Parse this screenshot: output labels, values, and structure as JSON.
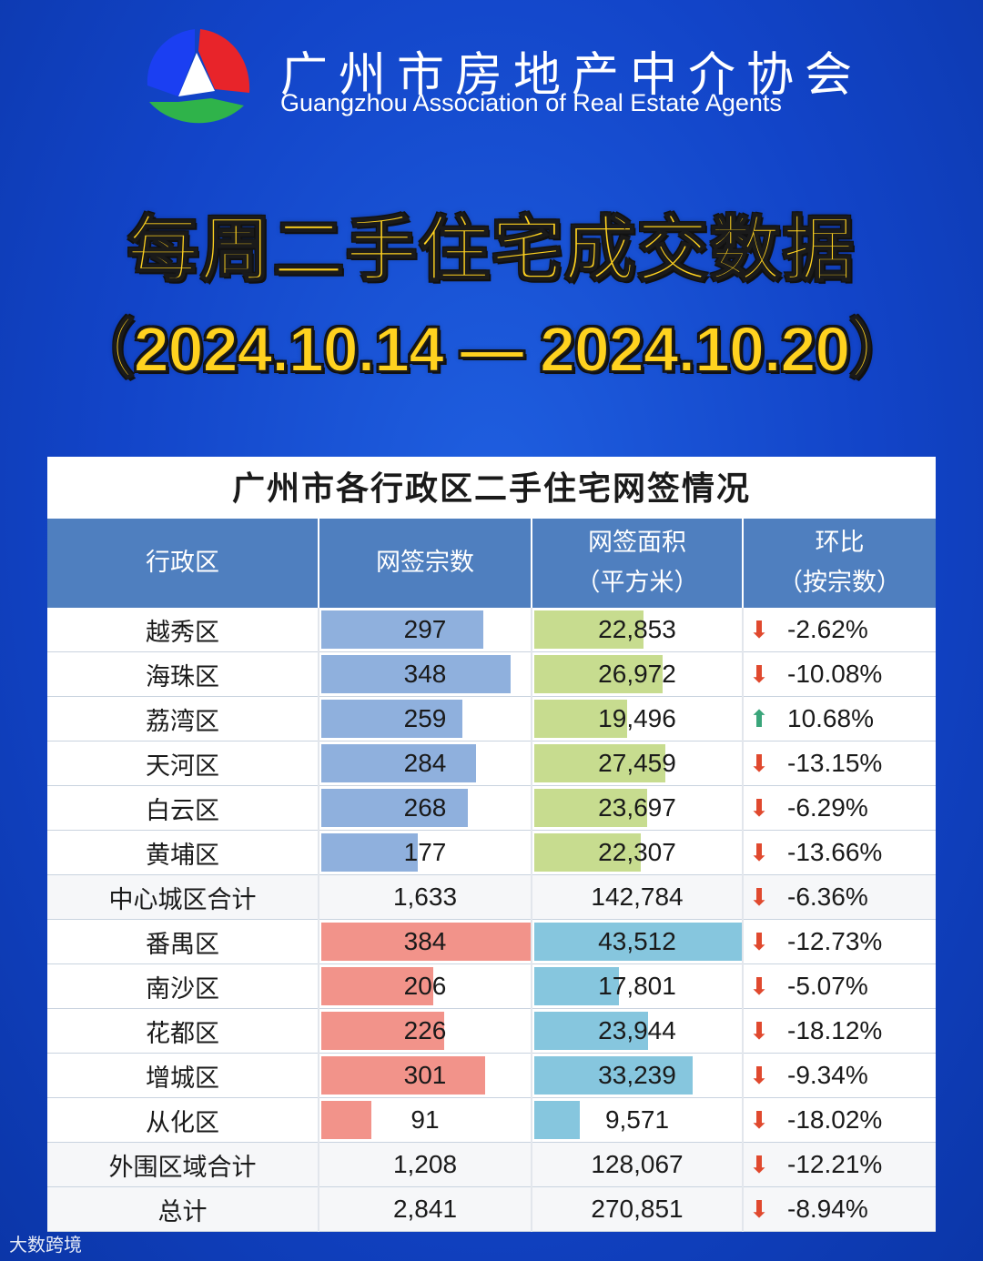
{
  "header": {
    "org_name_cn": "广州市房地产中介协会",
    "org_name_en": "Guangzhou Association of Real Estate Agents",
    "title": "每周二手住宅成交数据",
    "date_range": "（2024.10.14 — 2024.10.20）"
  },
  "watermark": "大数跨境",
  "colors": {
    "header_bg": "#4f7fbf",
    "central_count_bar": "#8fb0dd",
    "central_area_bar": "#c7dc8f",
    "outer_count_bar": "#f2938a",
    "outer_area_bar": "#86c6de",
    "down_arrow": "#e0492e",
    "up_arrow": "#3aa57a"
  },
  "chart_data": {
    "type": "table",
    "title": "广州市各行政区二手住宅网签情况",
    "columns": [
      "行政区",
      "网签宗数",
      "网签面积（平方米）",
      "环比（按宗数）"
    ],
    "column_lines": [
      [
        "行政区"
      ],
      [
        "网签宗数"
      ],
      [
        "网签面积",
        "（平方米）"
      ],
      [
        "环比",
        "（按宗数）"
      ]
    ],
    "rows": [
      {
        "district": "越秀区",
        "count": 297,
        "count_text": "297",
        "area": 22853,
        "area_text": "22,853",
        "change_text": "-2.62%",
        "direction": "down",
        "group": "central"
      },
      {
        "district": "海珠区",
        "count": 348,
        "count_text": "348",
        "area": 26972,
        "area_text": "26,972",
        "change_text": "-10.08%",
        "direction": "down",
        "group": "central"
      },
      {
        "district": "荔湾区",
        "count": 259,
        "count_text": "259",
        "area": 19496,
        "area_text": "19,496",
        "change_text": "10.68%",
        "direction": "up",
        "group": "central"
      },
      {
        "district": "天河区",
        "count": 284,
        "count_text": "284",
        "area": 27459,
        "area_text": "27,459",
        "change_text": "-13.15%",
        "direction": "down",
        "group": "central"
      },
      {
        "district": "白云区",
        "count": 268,
        "count_text": "268",
        "area": 23697,
        "area_text": "23,697",
        "change_text": "-6.29%",
        "direction": "down",
        "group": "central"
      },
      {
        "district": "黄埔区",
        "count": 177,
        "count_text": "177",
        "area": 22307,
        "area_text": "22,307",
        "change_text": "-13.66%",
        "direction": "down",
        "group": "central"
      },
      {
        "district": "中心城区合计",
        "count": 1633,
        "count_text": "1,633",
        "area": 142784,
        "area_text": "142,784",
        "change_text": "-6.36%",
        "direction": "down",
        "group": "subtotal"
      },
      {
        "district": "番禺区",
        "count": 384,
        "count_text": "384",
        "area": 43512,
        "area_text": "43,512",
        "change_text": "-12.73%",
        "direction": "down",
        "group": "outer"
      },
      {
        "district": "南沙区",
        "count": 206,
        "count_text": "206",
        "area": 17801,
        "area_text": "17,801",
        "change_text": "-5.07%",
        "direction": "down",
        "group": "outer"
      },
      {
        "district": "花都区",
        "count": 226,
        "count_text": "226",
        "area": 23944,
        "area_text": "23,944",
        "change_text": "-18.12%",
        "direction": "down",
        "group": "outer"
      },
      {
        "district": "增城区",
        "count": 301,
        "count_text": "301",
        "area": 33239,
        "area_text": "33,239",
        "change_text": "-9.34%",
        "direction": "down",
        "group": "outer"
      },
      {
        "district": "从化区",
        "count": 91,
        "count_text": "91",
        "area": 9571,
        "area_text": "9,571",
        "change_text": "-18.02%",
        "direction": "down",
        "group": "outer"
      },
      {
        "district": "外围区域合计",
        "count": 1208,
        "count_text": "1,208",
        "area": 128067,
        "area_text": "128,067",
        "change_text": "-12.21%",
        "direction": "down",
        "group": "subtotal"
      },
      {
        "district": "总计",
        "count": 2841,
        "count_text": "2,841",
        "area": 270851,
        "area_text": "270,851",
        "change_text": "-8.94%",
        "direction": "down",
        "group": "total"
      }
    ]
  }
}
